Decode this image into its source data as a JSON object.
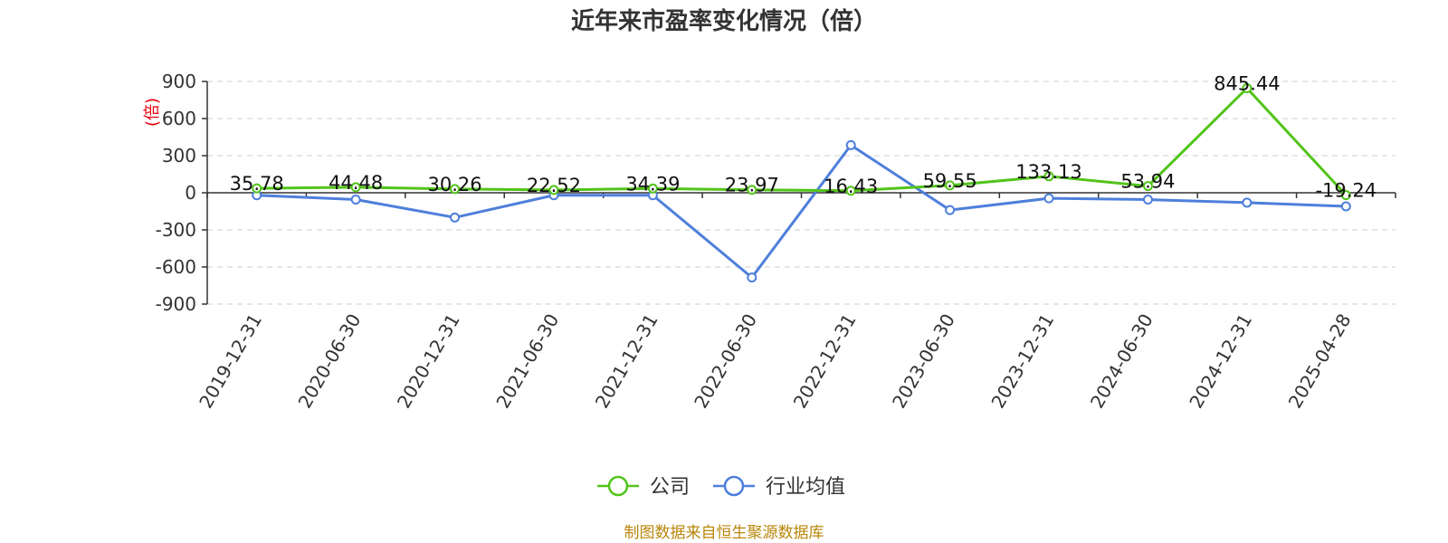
{
  "chart_data": {
    "type": "line",
    "title": "近年来市盈率变化情况（倍）",
    "ylabel": "(倍)",
    "xlabel": "",
    "categories": [
      "2019-12-31",
      "2020-06-30",
      "2020-12-31",
      "2021-06-30",
      "2021-12-31",
      "2022-06-30",
      "2022-12-31",
      "2023-06-30",
      "2023-12-31",
      "2024-06-30",
      "2024-12-31",
      "2025-04-28"
    ],
    "yticks": [
      "900",
      "600",
      "300",
      "0",
      "-300",
      "-600",
      "-900"
    ],
    "ylim": [
      -900,
      900
    ],
    "grid": true,
    "legend_position": "bottom",
    "series": [
      {
        "name": "公司",
        "color": "#52c41a",
        "values": [
          35.78,
          44.48,
          30.26,
          22.52,
          34.39,
          23.97,
          16.43,
          59.55,
          133.13,
          53.94,
          845.44,
          -19.24
        ],
        "labels": [
          "35.78",
          "44.48",
          "30.26",
          "22.52",
          "34.39",
          "23.97",
          "16.43",
          "59.55",
          "133.13",
          "53.94",
          "845.44",
          "-19.24"
        ]
      },
      {
        "name": "行业均值",
        "color": "#4e7fdb",
        "values": [
          -20,
          -55,
          -200,
          -20,
          -20,
          -685,
          385,
          -140,
          -45,
          -55,
          -80,
          -110
        ]
      }
    ]
  },
  "footer": {
    "source": "制图数据来自恒生聚源数据库"
  }
}
